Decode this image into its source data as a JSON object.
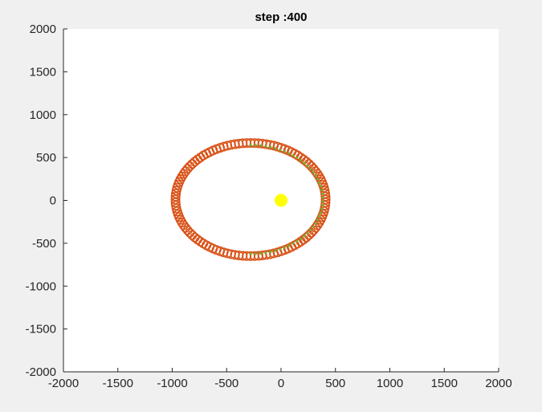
{
  "chart_data": {
    "type": "scatter",
    "title": "step :400",
    "xlabel": "",
    "ylabel": "",
    "xlim": [
      -2000,
      2000
    ],
    "ylim": [
      -2000,
      2000
    ],
    "x_ticks": [
      -2000,
      -1500,
      -1000,
      -500,
      0,
      500,
      1000,
      1500,
      2000
    ],
    "y_ticks": [
      -2000,
      -1500,
      -1000,
      -500,
      0,
      500,
      1000,
      1500,
      2000
    ],
    "grid": false,
    "legend": "none",
    "orbit": {
      "center": [
        -280,
        10
      ],
      "semi_axis_x": 690,
      "semi_axis_y": 660,
      "point_count": 120,
      "color": "#d95319",
      "inner_color": "#77ac30",
      "inner_arc_start_deg": -90,
      "inner_arc_end_deg": 90
    },
    "central_body": {
      "x": 0,
      "y": 0,
      "color": "#ffff00"
    }
  },
  "colors": {
    "figure_background": "#f0f0f0",
    "axes_background": "#ffffff",
    "axes_color": "#262626"
  }
}
